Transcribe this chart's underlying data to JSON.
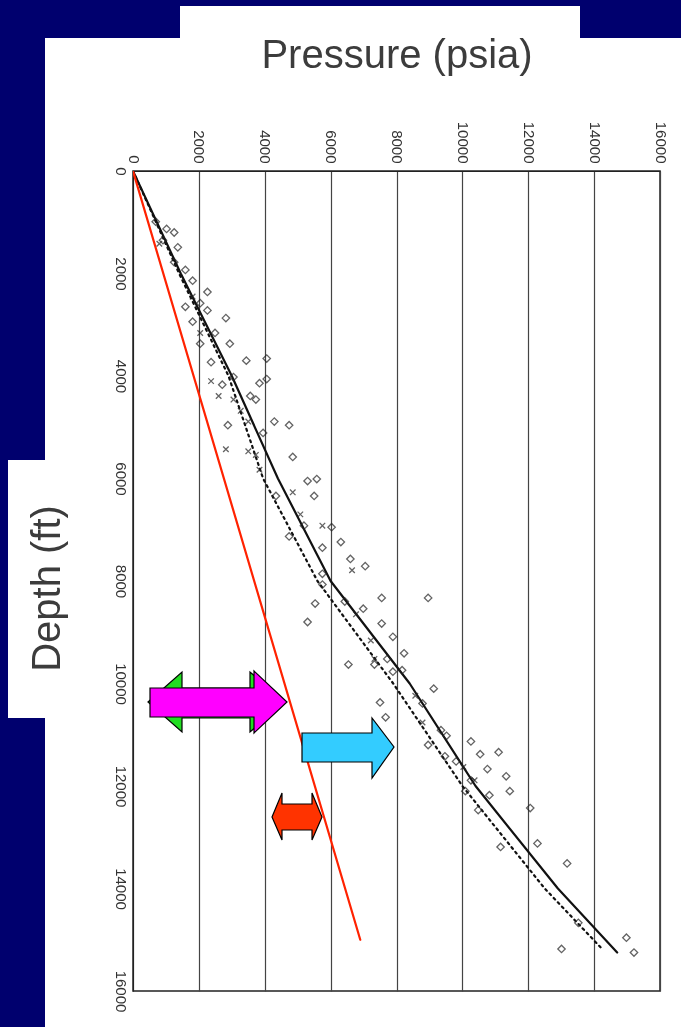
{
  "chart_data": {
    "type": "scatter",
    "xlabel": "Pressure (psia)",
    "ylabel": "Depth (ft)",
    "xlim": [
      0,
      16000
    ],
    "ylim": [
      16000,
      0
    ],
    "xticks": [
      0,
      2000,
      4000,
      6000,
      8000,
      10000,
      12000,
      14000,
      16000
    ],
    "yticks": [
      0,
      2000,
      4000,
      6000,
      8000,
      10000,
      12000,
      14000,
      16000
    ],
    "grid": "x",
    "series": [
      {
        "marker": "diamond",
        "color": "#222222",
        "x": [
          690,
          1250,
          910,
          1360,
          1590,
          1810,
          2260,
          2040,
          1590,
          2260,
          2820,
          1810,
          2040,
          2940,
          3440,
          4060,
          4060,
          3840,
          2370,
          2710,
          3560,
          3730,
          2880,
          4740,
          4290,
          3950,
          4850,
          3050,
          2490,
          1250,
          1020,
          8960,
          4740,
          5530,
          5300,
          6540,
          7330,
          7050,
          7550,
          7550,
          7890,
          8230,
          8170,
          9130,
          5580,
          5500,
          6030,
          6310,
          6600,
          5750,
          5750,
          6430,
          6990,
          5750,
          5190,
          4340,
          5300,
          7720,
          7890,
          8790,
          7500,
          7670,
          8960,
          9350,
          9520,
          9470,
          10260,
          10540,
          11100,
          10760,
          11330,
          11440,
          10090,
          10820,
          10480,
          12060,
          12280,
          11160,
          13180,
          13520,
          13010,
          14980,
          15210,
          10260,
          9810
        ],
        "values": [
          990,
          1200,
          1350,
          1490,
          1930,
          2140,
          2360,
          2580,
          2650,
          2720,
          2870,
          2940,
          3370,
          3370,
          3700,
          3660,
          4060,
          4140,
          3730,
          4170,
          4390,
          4460,
          4960,
          4960,
          4890,
          5110,
          5580,
          4020,
          3160,
          1780,
          1130,
          8330,
          7130,
          8440,
          8800,
          9630,
          9630,
          7710,
          8330,
          8830,
          9090,
          9410,
          9740,
          10100,
          6010,
          6340,
          6950,
          7240,
          7570,
          7860,
          8070,
          8400,
          8540,
          7350,
          6920,
          6340,
          6050,
          9520,
          9770,
          10390,
          10370,
          10660,
          11200,
          10910,
          11020,
          11420,
          11130,
          11380,
          11340,
          11670,
          11810,
          12100,
          12100,
          12180,
          12470,
          12430,
          13120,
          13190,
          13510,
          14670,
          15180,
          14960,
          15250,
          11890,
          11520
        ]
      },
      {
        "marker": "cross",
        "color": "#222222",
        "x": [
          2370,
          2600,
          2820,
          3050,
          3270,
          2040,
          3500,
          1810,
          800,
          3730,
          3500,
          3840,
          4850,
          5080,
          5750,
          6650,
          6770,
          7330,
          7220,
          8570,
          8790,
          10030,
          10370
        ],
        "values": [
          4100,
          4390,
          5430,
          4460,
          4680,
          3160,
          4890,
          2450,
          1420,
          5540,
          5470,
          5830,
          6270,
          6700,
          6920,
          7790,
          8650,
          9520,
          9160,
          10240,
          10760,
          11630,
          11890
        ]
      },
      {
        "type": "line",
        "line_style": "solid",
        "color": "#111111",
        "x": [
          0,
          1450,
          3000,
          4400,
          6000,
          8400,
          10400,
          12900,
          14700
        ],
        "values": [
          0,
          2000,
          4000,
          6000,
          8000,
          10000,
          12000,
          14000,
          15250
        ]
      },
      {
        "type": "line",
        "line_style": "dotted",
        "color": "#111111",
        "x": [
          0,
          1400,
          2900,
          3950,
          5600,
          7900,
          10000,
          12500,
          14200
        ],
        "values": [
          0,
          2000,
          4000,
          6000,
          8000,
          10000,
          12000,
          14000,
          15150
        ]
      },
      {
        "type": "line",
        "line_style": "solid",
        "color": "#ff2200",
        "x": [
          0,
          6900
        ],
        "values": [
          0,
          15000
        ]
      }
    ]
  }
}
